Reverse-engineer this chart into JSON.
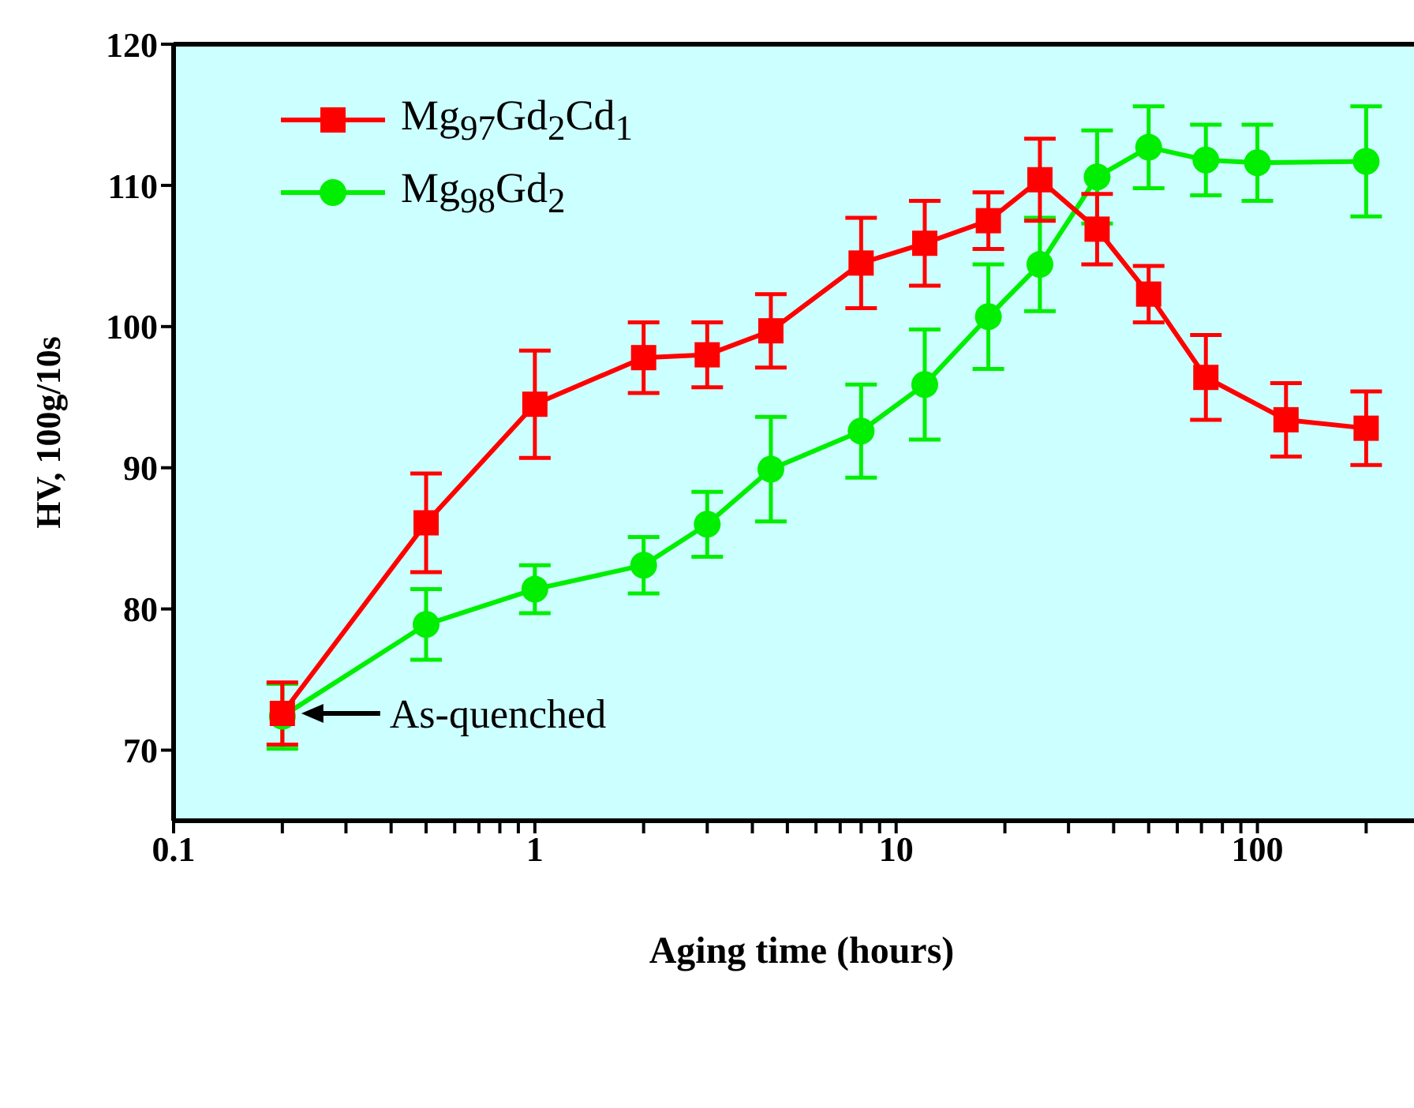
{
  "chart_data": {
    "type": "line",
    "xlabel": "Aging time (hours)",
    "ylabel": "HV, 100g/10s",
    "log": "x",
    "xlim": [
      0.1,
      300
    ],
    "ylim": [
      65,
      120
    ],
    "xticks": [
      0.1,
      {
        "value": 0.2,
        "label": null
      },
      {
        "value": 0.3,
        "label": null
      },
      {
        "value": 0.4,
        "label": null
      },
      {
        "value": 0.5,
        "label": null
      },
      {
        "value": 0.6,
        "label": null
      },
      {
        "value": 0.7,
        "label": null
      },
      {
        "value": 0.8,
        "label": null
      },
      {
        "value": 0.9,
        "label": null
      },
      1,
      {
        "value": 2,
        "label": null
      },
      {
        "value": 3,
        "label": null
      },
      {
        "value": 4,
        "label": null
      },
      {
        "value": 5,
        "label": null
      },
      {
        "value": 6,
        "label": null
      },
      {
        "value": 7,
        "label": null
      },
      {
        "value": 8,
        "label": null
      },
      {
        "value": 9,
        "label": null
      },
      10,
      {
        "value": 20,
        "label": null
      },
      {
        "value": 30,
        "label": null
      },
      {
        "value": 40,
        "label": null
      },
      {
        "value": 50,
        "label": null
      },
      {
        "value": 60,
        "label": null
      },
      {
        "value": 70,
        "label": null
      },
      {
        "value": 80,
        "label": null
      },
      {
        "value": 90,
        "label": null
      },
      100,
      {
        "value": 200,
        "label": null
      }
    ],
    "yticks": [
      70,
      80,
      90,
      100,
      110,
      120
    ],
    "legend": "top left",
    "grid": false,
    "line_style": "solid",
    "series": [
      {
        "name": "Mg$_{97}$Gd$_{2}$Cd$_{1}$",
        "color": "#ff0000",
        "marker": "square",
        "x": [
          0.2,
          0.5,
          1,
          2,
          3,
          4.5,
          8,
          12,
          18,
          25,
          36,
          50,
          72,
          120,
          200
        ],
        "values": [
          72.6,
          86.1,
          94.5,
          97.8,
          98.0,
          99.7,
          104.5,
          105.9,
          107.5,
          110.4,
          106.9,
          102.3,
          96.4,
          93.4,
          92.8
        ],
        "errors": [
          2.2,
          3.5,
          3.8,
          2.5,
          2.3,
          2.6,
          3.2,
          3,
          2,
          2.9,
          2.5,
          2,
          3,
          2.6,
          2.6
        ]
      },
      {
        "name": "Mg$_{98}$Gd$_{2}$",
        "color": "#00ee00",
        "marker": "circle",
        "x": [
          0.2,
          0.5,
          1,
          2,
          3,
          4.5,
          8,
          12,
          18,
          25,
          36,
          50,
          72,
          100,
          200
        ],
        "values": [
          72.4,
          78.9,
          81.4,
          83.1,
          86.0,
          89.9,
          92.6,
          95.9,
          100.7,
          104.4,
          110.6,
          112.7,
          111.8,
          111.6,
          111.7
        ],
        "errors": [
          2.3,
          2.5,
          1.7,
          2,
          2.3,
          3.7,
          3.3,
          3.9,
          3.7,
          3.3,
          3.3,
          2.9,
          2.5,
          2.7,
          3.9
        ]
      }
    ],
    "annotations": [
      {
        "text": "As-quenched",
        "x": 0.2,
        "y": 72.6
      }
    ]
  }
}
